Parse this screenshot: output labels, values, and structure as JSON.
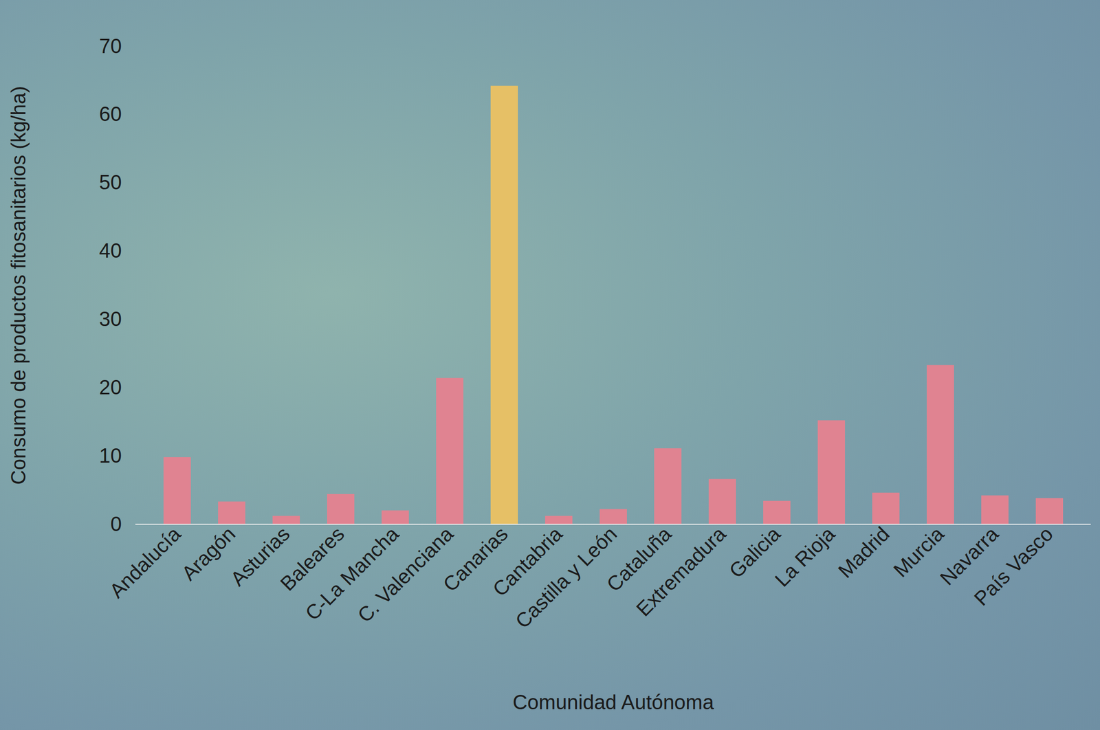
{
  "chart_data": {
    "type": "bar",
    "xlabel": "Comunidad Autónoma",
    "ylabel": "Consumo de productos fitosanitarios (kg/ha)",
    "categories": [
      "Andalucía",
      "Aragón",
      "Asturias",
      "Baleares",
      "C-La Mancha",
      "C. Valenciana",
      "Canarias",
      "Cantabria",
      "Castilla y León",
      "Cataluña",
      "Extremadura",
      "Galicia",
      "La Rioja",
      "Madrid",
      "Murcia",
      "Navarra",
      "País Vasco"
    ],
    "values": [
      9.8,
      3.3,
      1.2,
      4.4,
      2.0,
      21.4,
      64.2,
      1.2,
      2.2,
      11.1,
      6.6,
      3.4,
      15.2,
      4.6,
      23.3,
      4.2,
      3.8
    ],
    "colors": [
      "#e08391",
      "#e08391",
      "#e08391",
      "#e08391",
      "#e08391",
      "#e08391",
      "#e6c066",
      "#e08391",
      "#e08391",
      "#e08391",
      "#e08391",
      "#e08391",
      "#e08391",
      "#e08391",
      "#e08391",
      "#e08391",
      "#e08391"
    ],
    "ylim": [
      0,
      70
    ],
    "yticks": [
      0,
      10,
      20,
      30,
      40,
      50,
      60,
      70
    ],
    "grid": false
  }
}
